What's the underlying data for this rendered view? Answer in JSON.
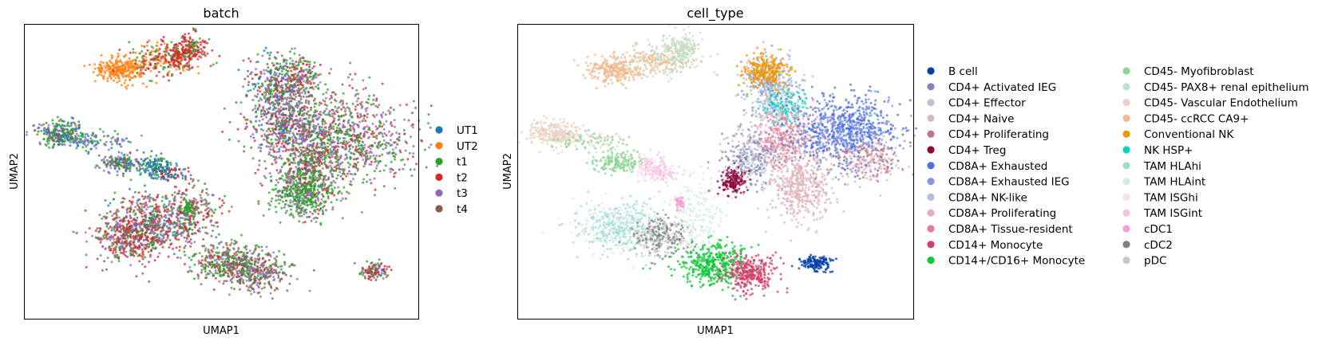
{
  "chart_data": [
    {
      "type": "scatter",
      "title": "batch",
      "xlabel": "UMAP1",
      "ylabel": "UMAP2",
      "ticks": "none",
      "grid": false,
      "legend_position": "right",
      "series": [
        {
          "name": "UT1",
          "color": "#1f77b4"
        },
        {
          "name": "UT2",
          "color": "#ff7f0e"
        },
        {
          "name": "t1",
          "color": "#2ca02c"
        },
        {
          "name": "t2",
          "color": "#d62728"
        },
        {
          "name": "t3",
          "color": "#9467bd"
        },
        {
          "name": "t4",
          "color": "#8c564b"
        }
      ]
    },
    {
      "type": "scatter",
      "title": "cell_type",
      "xlabel": "UMAP1",
      "ylabel": "UMAP2",
      "ticks": "none",
      "grid": false,
      "legend_position": "right",
      "series": [
        {
          "name": "B cell",
          "color": "#023fa5"
        },
        {
          "name": "CD4+ Activated IEG",
          "color": "#7d87b9"
        },
        {
          "name": "CD4+ Effector",
          "color": "#bec1d4"
        },
        {
          "name": "CD4+ Naive",
          "color": "#d6bcc0"
        },
        {
          "name": "CD4+ Proliferating",
          "color": "#bb7784"
        },
        {
          "name": "CD4+ Treg",
          "color": "#8e063b"
        },
        {
          "name": "CD8A+ Exhausted",
          "color": "#4a6fe3"
        },
        {
          "name": "CD8A+ Exhausted IEG",
          "color": "#8595e1"
        },
        {
          "name": "CD8A+ NK-like",
          "color": "#b5bbe3"
        },
        {
          "name": "CD8A+ Proliferating",
          "color": "#e6afb9"
        },
        {
          "name": "CD8A+ Tissue-resident",
          "color": "#e07b91"
        },
        {
          "name": "CD14+ Monocyte",
          "color": "#d33f6a"
        },
        {
          "name": "CD14+/CD16+ Monocyte",
          "color": "#11c638"
        },
        {
          "name": "CD45- Myofibroblast",
          "color": "#8dd593"
        },
        {
          "name": "CD45- PAX8+ renal epithelium",
          "color": "#c6dec7"
        },
        {
          "name": "CD45- Vascular Endothelium",
          "color": "#ead3c6"
        },
        {
          "name": "CD45- ccRCC CA9+",
          "color": "#f0b98d"
        },
        {
          "name": "Conventional NK",
          "color": "#ef9708"
        },
        {
          "name": "NK HSP+",
          "color": "#0fcfc0"
        },
        {
          "name": "TAM HLAhi",
          "color": "#9cded6"
        },
        {
          "name": "TAM HLAint",
          "color": "#d5eae7"
        },
        {
          "name": "TAM ISGhi",
          "color": "#f3e1eb"
        },
        {
          "name": "TAM ISGint",
          "color": "#f6c4e1"
        },
        {
          "name": "cDC1",
          "color": "#f79cd4"
        },
        {
          "name": "cDC2",
          "color": "#7f7f7f"
        },
        {
          "name": "pDC",
          "color": "#c7c7c7"
        }
      ]
    }
  ]
}
